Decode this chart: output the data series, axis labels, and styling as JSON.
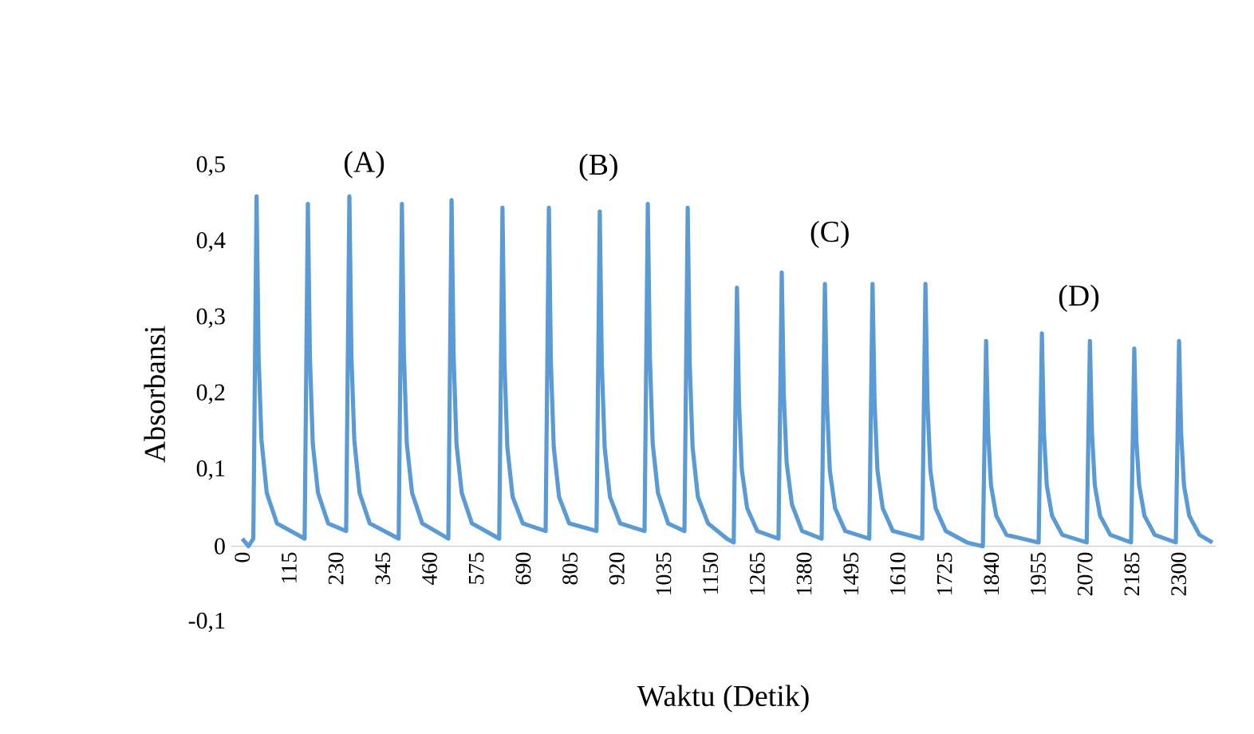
{
  "chart_data": {
    "type": "line",
    "xlabel": "Waktu (Detik)",
    "ylabel": "Absorbansi",
    "x": [
      0,
      15,
      27,
      35,
      40,
      47,
      60,
      85,
      153,
      161,
      166,
      173,
      186,
      211,
      255,
      263,
      268,
      275,
      288,
      313,
      384,
      392,
      397,
      404,
      417,
      442,
      506,
      514,
      519,
      526,
      539,
      564,
      631,
      639,
      644,
      651,
      664,
      689,
      745,
      753,
      758,
      765,
      778,
      803,
      870,
      878,
      883,
      890,
      903,
      928,
      988,
      996,
      1001,
      1008,
      1021,
      1046,
      1086,
      1094,
      1099,
      1106,
      1119,
      1144,
      1190,
      1207,
      1215,
      1220,
      1227,
      1240,
      1265,
      1317,
      1325,
      1330,
      1337,
      1350,
      1375,
      1423,
      1431,
      1436,
      1443,
      1456,
      1481,
      1540,
      1548,
      1553,
      1560,
      1573,
      1598,
      1670,
      1678,
      1683,
      1690,
      1703,
      1728,
      1780,
      1819,
      1827,
      1832,
      1839,
      1852,
      1877,
      1956,
      1964,
      1969,
      1976,
      1989,
      2014,
      2074,
      2082,
      2087,
      2094,
      2107,
      2132,
      2183,
      2191,
      2196,
      2203,
      2216,
      2241,
      2293,
      2301,
      2306,
      2313,
      2326,
      2351,
      2383
    ],
    "series": [
      {
        "color": "#5b9bd5",
        "values": [
          0.01,
          0.0,
          0.01,
          0.46,
          0.25,
          0.14,
          0.07,
          0.03,
          0.01,
          0.45,
          0.25,
          0.135,
          0.07,
          0.03,
          0.02,
          0.46,
          0.25,
          0.14,
          0.07,
          0.03,
          0.01,
          0.45,
          0.25,
          0.135,
          0.07,
          0.03,
          0.01,
          0.455,
          0.25,
          0.135,
          0.07,
          0.03,
          0.01,
          0.445,
          0.24,
          0.13,
          0.065,
          0.03,
          0.02,
          0.445,
          0.24,
          0.13,
          0.065,
          0.03,
          0.02,
          0.44,
          0.24,
          0.13,
          0.065,
          0.03,
          0.02,
          0.45,
          0.25,
          0.135,
          0.07,
          0.03,
          0.02,
          0.445,
          0.24,
          0.13,
          0.065,
          0.03,
          0.01,
          0.005,
          0.34,
          0.19,
          0.1,
          0.05,
          0.02,
          0.01,
          0.36,
          0.2,
          0.11,
          0.055,
          0.02,
          0.01,
          0.345,
          0.19,
          0.1,
          0.05,
          0.02,
          0.01,
          0.345,
          0.19,
          0.1,
          0.05,
          0.02,
          0.01,
          0.345,
          0.19,
          0.1,
          0.05,
          0.02,
          0.005,
          0.0,
          0.27,
          0.15,
          0.08,
          0.04,
          0.015,
          0.005,
          0.28,
          0.15,
          0.08,
          0.04,
          0.015,
          0.005,
          0.27,
          0.15,
          0.08,
          0.04,
          0.015,
          0.005,
          0.26,
          0.14,
          0.08,
          0.04,
          0.015,
          0.005,
          0.27,
          0.15,
          0.08,
          0.04,
          0.015,
          0.005
        ]
      }
    ],
    "xlim": [
      -27,
      2391
    ],
    "xticks": [
      0,
      115,
      230,
      345,
      460,
      575,
      690,
      805,
      920,
      1035,
      1150,
      1265,
      1380,
      1495,
      1610,
      1725,
      1840,
      1955,
      2070,
      2185,
      2300
    ],
    "ylim": [
      -0.1,
      0.5
    ],
    "yticks": [
      {
        "value": -0.1,
        "label": "-0,1"
      },
      {
        "value": 0,
        "label": "0"
      },
      {
        "value": 0.1,
        "label": "0,1"
      },
      {
        "value": 0.2,
        "label": "0,2"
      },
      {
        "value": 0.3,
        "label": "0,3"
      },
      {
        "value": 0.4,
        "label": "0,4"
      },
      {
        "value": 0.5,
        "label": "0,5"
      }
    ],
    "grid": false,
    "marker": "none",
    "line_style": "solid",
    "annotations": [
      "(A)",
      "(B)",
      "(C)",
      "(D)"
    ]
  }
}
